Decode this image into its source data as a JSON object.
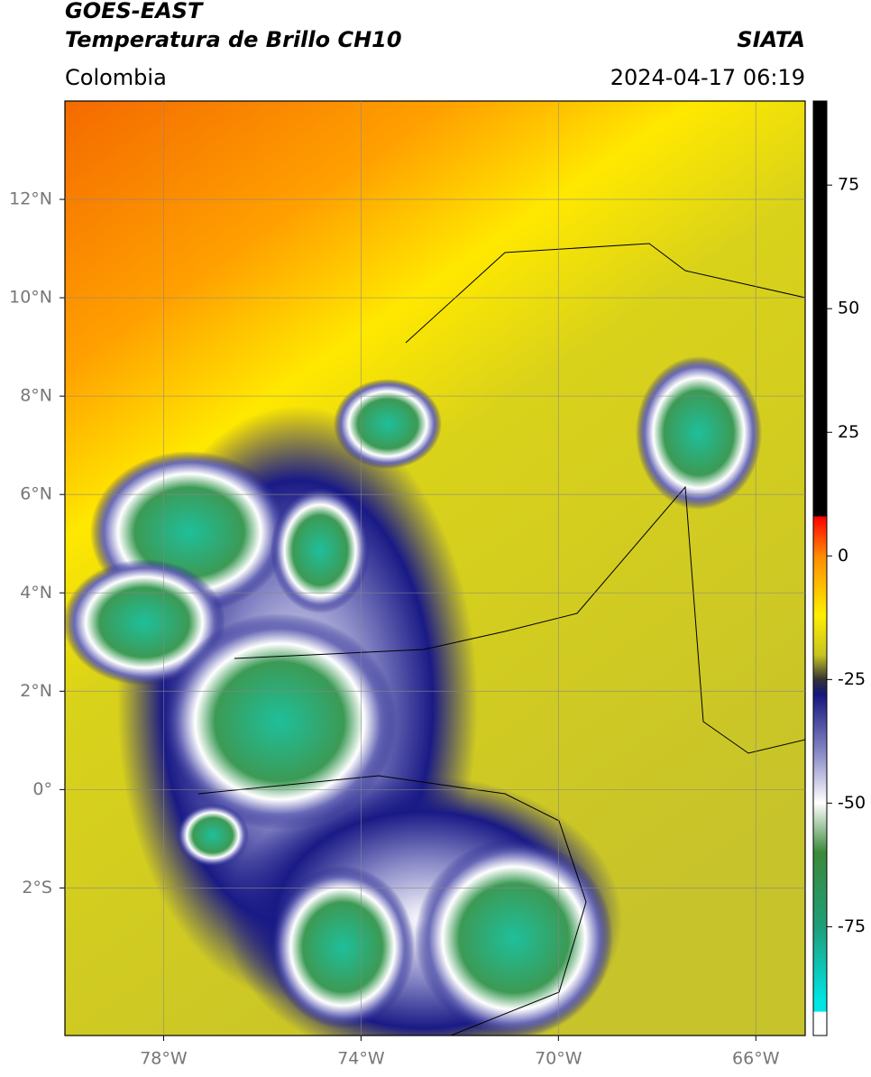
{
  "header": {
    "title": "GOES-EAST",
    "subtitle": "Temperatura de Brillo CH10",
    "source": "SIATA",
    "region": "Colombia",
    "datetime": "2024-04-17 06:19"
  },
  "map": {
    "lonlim": [
      -80,
      -65
    ],
    "latlim": [
      -5,
      14
    ],
    "grid": true,
    "lon_ticks": [
      {
        "value": -78,
        "label": "78°W"
      },
      {
        "value": -74,
        "label": "74°W"
      },
      {
        "value": -70,
        "label": "70°W"
      },
      {
        "value": -66,
        "label": "66°W"
      }
    ],
    "lat_ticks": [
      {
        "value": 12,
        "label": "12°N"
      },
      {
        "value": 10,
        "label": "10°N"
      },
      {
        "value": 8,
        "label": "8°N"
      },
      {
        "value": 6,
        "label": "6°N"
      },
      {
        "value": 4,
        "label": "4°N"
      },
      {
        "value": 2,
        "label": "2°N"
      },
      {
        "value": 0,
        "label": "0°"
      },
      {
        "value": -2,
        "label": "2°S"
      }
    ]
  },
  "colorbar": {
    "lim": [
      -97,
      92
    ],
    "ticks": [
      75,
      50,
      25,
      0,
      -25,
      -50,
      -75
    ]
  }
}
